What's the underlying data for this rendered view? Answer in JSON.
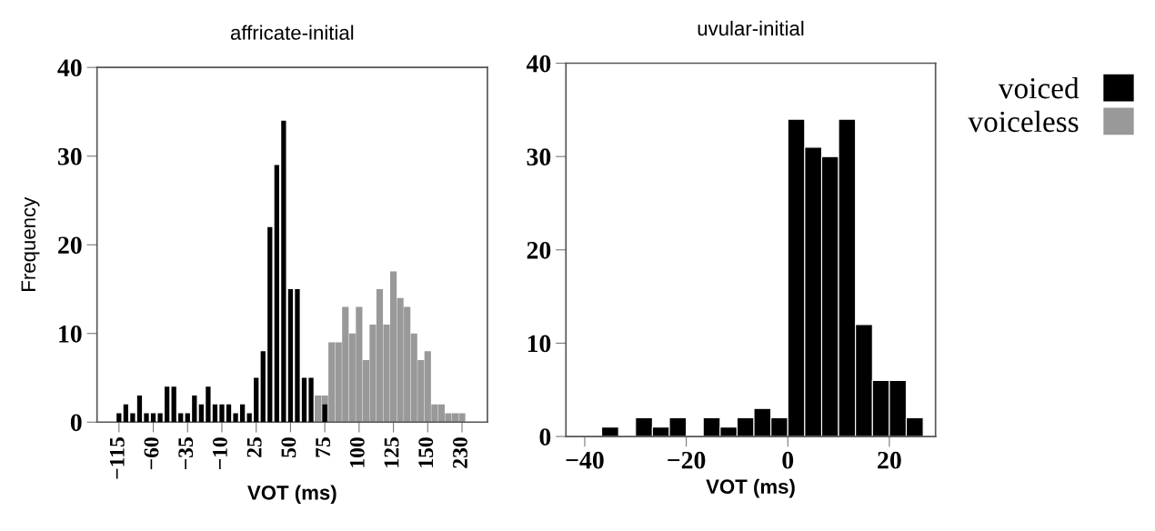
{
  "chart_data": [
    {
      "type": "bar",
      "title": "affricate-initial",
      "xlabel": "VOT (ms)",
      "ylabel": "Frequency",
      "categories": [
        "−115",
        null,
        null,
        null,
        null,
        "−60",
        null,
        null,
        null,
        null,
        "−35",
        null,
        null,
        null,
        null,
        "−10",
        null,
        null,
        null,
        null,
        "25",
        null,
        null,
        null,
        null,
        "50",
        null,
        null,
        null,
        null,
        "75",
        null,
        null,
        null,
        null,
        "100",
        null,
        null,
        null,
        null,
        "125",
        null,
        null,
        null,
        null,
        "150",
        null,
        null,
        null,
        null,
        "230"
      ],
      "series": [
        {
          "name": "voiceless",
          "color": "#999999",
          "values": [
            null,
            null,
            null,
            null,
            null,
            null,
            null,
            null,
            null,
            null,
            null,
            null,
            null,
            null,
            null,
            null,
            null,
            null,
            null,
            null,
            null,
            null,
            null,
            null,
            null,
            null,
            null,
            null,
            null,
            3,
            3,
            9,
            9,
            13,
            10,
            13,
            7,
            11,
            15,
            11,
            17,
            14,
            13,
            10,
            7,
            8,
            2,
            2,
            1,
            1,
            1
          ]
        },
        {
          "name": "voiced",
          "color": "#000000",
          "values": [
            1,
            2,
            1,
            3,
            1,
            1,
            1,
            4,
            4,
            1,
            1,
            3,
            2,
            4,
            2,
            2,
            2,
            1,
            2,
            1,
            5,
            8,
            22,
            29,
            34,
            15,
            15,
            5,
            5,
            null,
            2,
            null,
            null,
            null,
            null,
            null,
            null,
            null,
            null,
            null,
            null,
            null,
            null,
            null,
            null,
            null,
            null,
            null,
            null,
            null,
            null
          ]
        }
      ],
      "ylim": [
        0,
        40
      ],
      "yticks": [
        0,
        10,
        20,
        30,
        40
      ],
      "grid": false,
      "legend": "right"
    },
    {
      "type": "histogram",
      "title": "uvular-initial",
      "xlabel": "VOT (ms)",
      "color": "#000000",
      "bins": [
        -36.67,
        -33.33,
        -30,
        -26.67,
        -23.33,
        -20,
        -16.67,
        -13.33,
        -10,
        -6.67,
        -3.33,
        0,
        3.33,
        6.67,
        10,
        13.33,
        16.67,
        20,
        23.33,
        26.67
      ],
      "values": [
        1,
        0,
        2,
        1,
        2,
        0,
        2,
        1,
        2,
        3,
        2,
        34,
        31,
        30,
        34,
        12,
        6,
        6,
        2
      ],
      "xlim": [
        -43.7,
        29.1
      ],
      "xticks": [
        {
          "value": -40,
          "label": "−40"
        },
        {
          "value": -20,
          "label": "−20"
        },
        0,
        20
      ],
      "ylim": [
        0,
        40
      ],
      "yticks": [
        0,
        10,
        20,
        30,
        40
      ],
      "grid": false
    }
  ]
}
